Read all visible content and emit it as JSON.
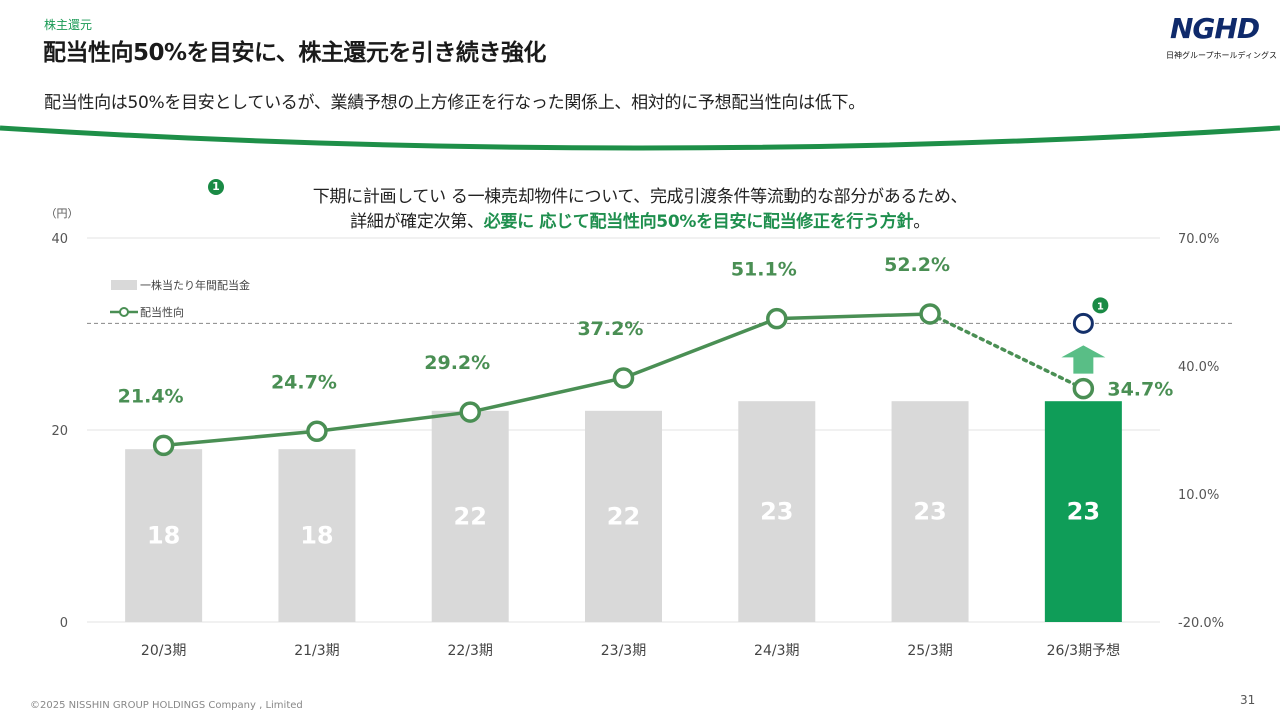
{
  "header": {
    "section_label": "株主還元",
    "title": "配当性向50%を目安に、株主還元を引き続き強化",
    "subtitle": "配当性向は50%を目安としているが、業績予想の上方修正を行なった関係上、相対的に予想配当性向は低下。"
  },
  "logo": {
    "mark": "NGHD",
    "caption": "日神グループホールディングス"
  },
  "note": {
    "badge": "1",
    "line1": "下期に計画してい る一棟売却物件について、完成引渡条件等流動的な部分があるため、",
    "line2_plain": "詳細が確定次第、",
    "line2_bold": "必要に 応じて配当性向50%を目安に配当修正を行う方針",
    "line2_end": "。"
  },
  "colors": {
    "bar_gray": "#d9d9d9",
    "bar_highlight": "#0f9d58",
    "line_green": "#4a8f54",
    "label_green": "#4a8f54",
    "target_navy": "#14306a",
    "arrow_green": "#3cb371"
  },
  "chart_data": {
    "type": "bar+line",
    "unit_label": "（円）",
    "categories": [
      "20/3期",
      "21/3期",
      "22/3期",
      "23/3期",
      "24/3期",
      "25/3期",
      "26/3期予想"
    ],
    "series": [
      {
        "name": "一株当たり年間配当金",
        "type": "bar",
        "axis": "left",
        "values": [
          18,
          18,
          22,
          22,
          23,
          23,
          23
        ],
        "highlight_index": 6
      },
      {
        "name": "配当性向",
        "type": "line",
        "axis": "right",
        "values": [
          21.4,
          24.7,
          29.2,
          37.2,
          51.1,
          52.2,
          34.7
        ],
        "dotted_last_segment": true
      }
    ],
    "value_labels": [
      "21.4%",
      "24.7%",
      "29.2%",
      "37.2%",
      "51.1%",
      "52.2%",
      "34.7%"
    ],
    "left_axis": {
      "ylim": [
        0,
        40
      ],
      "ticks": [
        "0",
        "20",
        "40"
      ]
    },
    "right_axis": {
      "ylim": [
        -20.0,
        70.0
      ],
      "ticks": [
        "-20.0%",
        "10.0%",
        "40.0%",
        "70.0%"
      ]
    },
    "target_line": {
      "value": 50,
      "axis": "right",
      "style": "dashed"
    },
    "target_marker": {
      "category_index": 6,
      "value": 50,
      "badge": "1"
    }
  },
  "footer": {
    "copyright": "©2025 NISSHIN GROUP HOLDINGS Company , Limited",
    "page_number": "31"
  }
}
